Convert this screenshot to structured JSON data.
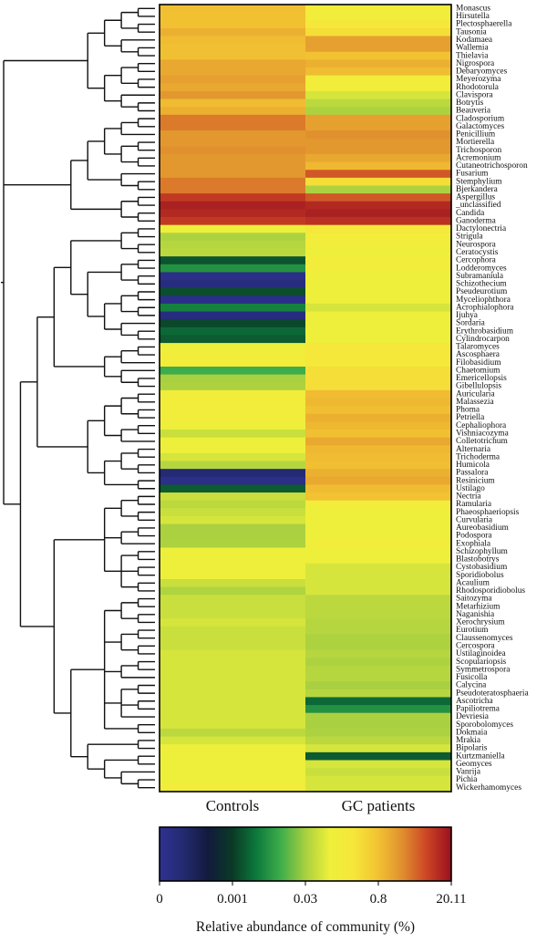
{
  "chart_data": {
    "type": "heatmap",
    "columns": [
      "Controls",
      "GC patients"
    ],
    "rows": [
      "Monascus",
      "Hirsutella",
      "Plectosphaerella",
      "Tausonia",
      "Kodamaea",
      "Wallemia",
      "Thielavia",
      "Nigrospora",
      "Debaryomyces",
      "Meyerozyma",
      "Rhodotorula",
      "Clavispora",
      "Botrytis",
      "Beauveria",
      "Cladosporium",
      "Galactomyces",
      "Penicillium",
      "Mortierella",
      "Trichosporon",
      "Acremonium",
      "Cutaneotrichosporon",
      "Fusarium",
      "Stemphylium",
      "Bjerkandera",
      "Aspergillus",
      "_unclassified",
      "Candida",
      "Ganoderma",
      "Dactylonectria",
      "Strigula",
      "Neurospora",
      "Ceratocystis",
      "Cercophora",
      "Lodderomyces",
      "Subramaniula",
      "Schizothecium",
      "Pseudeurotium",
      "Myceliophthora",
      "Acrophialophora",
      "Ijuhya",
      "Sordaria",
      "Erythrobasidium",
      "Cylindrocarpon",
      "Talaromyces",
      "Ascosphaera",
      "Filobasidium",
      "Chaetomium",
      "Emericellopsis",
      "Gibellulopsis",
      "Auricularia",
      "Malassezia",
      "Phoma",
      "Petriella",
      "Cephaliophora",
      "Vishniacozyma",
      "Colletotrichum",
      "Alternaria",
      "Trichoderma",
      "Humicola",
      "Passalora",
      "Resinicium",
      "Ustilago",
      "Nectria",
      "Ramularia",
      "Phaeosphaeriopsis",
      "Curvularia",
      "Aureobasidium",
      "Podospora",
      "Exophiala",
      "Schizophyllum",
      "Blastobotrys",
      "Cystobasidium",
      "Sporidiobolus",
      "Acaulium",
      "Rhodosporidiobolus",
      "Saitozyma",
      "Metarhizium",
      "Naganishia",
      "Xerochrysium",
      "Eurotium",
      "Claussenomyces",
      "Cercospora",
      "Ustilaginoidea",
      "Scopulariopsis",
      "Symmetrospora",
      "Fusicolla",
      "Calycina",
      "Pseudoteratosphaeria",
      "Ascotricha",
      "Papiliotrema",
      "Devriesia",
      "Sporobolomyces",
      "Dokmaia",
      "Mrakia",
      "Bipolaris",
      "Kurtzmaniella",
      "Geomyces",
      "Vanrija",
      "Pichia",
      "Wickerhamomyces"
    ],
    "values": [
      [
        1,
        0.4
      ],
      [
        0.9,
        0.4
      ],
      [
        0.9,
        0.5
      ],
      [
        3,
        0.6
      ],
      [
        1.5,
        5
      ],
      [
        1,
        5
      ],
      [
        1,
        0.8
      ],
      [
        4,
        3
      ],
      [
        4,
        1.5
      ],
      [
        5,
        0.4
      ],
      [
        4,
        0.4
      ],
      [
        6,
        0.2
      ],
      [
        1.5,
        0.1
      ],
      [
        3,
        0.05
      ],
      [
        9,
        5
      ],
      [
        9,
        5
      ],
      [
        6,
        7
      ],
      [
        6,
        6
      ],
      [
        7,
        6
      ],
      [
        6,
        4
      ],
      [
        6,
        2
      ],
      [
        6,
        12
      ],
      [
        9,
        0.6
      ],
      [
        9,
        0.05
      ],
      [
        15,
        12
      ],
      [
        18,
        17
      ],
      [
        17,
        18
      ],
      [
        15,
        16
      ],
      [
        0.3,
        0.5
      ],
      [
        0.05,
        0.4
      ],
      [
        0.08,
        0.4
      ],
      [
        0.1,
        0.3
      ],
      [
        0.005,
        0.4
      ],
      [
        0.015,
        0.4
      ],
      [
        0.0001,
        0.3
      ],
      [
        0.0002,
        0.3
      ],
      [
        0.004,
        0.3
      ],
      [
        0.0001,
        0.3
      ],
      [
        0.012,
        0.2
      ],
      [
        0.0002,
        0.3
      ],
      [
        0.003,
        0.3
      ],
      [
        0.008,
        0.3
      ],
      [
        0.006,
        0.3
      ],
      [
        0.3,
        0.5
      ],
      [
        0.4,
        0.5
      ],
      [
        0.4,
        0.5
      ],
      [
        0.02,
        0.6
      ],
      [
        0.03,
        0.6
      ],
      [
        0.05,
        0.6
      ],
      [
        0.4,
        1.5
      ],
      [
        0.4,
        2
      ],
      [
        0.4,
        1
      ],
      [
        0.4,
        3
      ],
      [
        0.3,
        2
      ],
      [
        0.15,
        1
      ],
      [
        0.3,
        4
      ],
      [
        0.3,
        2
      ],
      [
        0.2,
        1.5
      ],
      [
        0.08,
        1
      ],
      [
        0.0003,
        3
      ],
      [
        0.0001,
        4
      ],
      [
        0.006,
        1.5
      ],
      [
        0.15,
        0.8
      ],
      [
        0.1,
        0.4
      ],
      [
        0.15,
        0.3
      ],
      [
        0.2,
        0.3
      ],
      [
        0.04,
        0.3
      ],
      [
        0.04,
        0.3
      ],
      [
        0.05,
        0.4
      ],
      [
        0.3,
        0.3
      ],
      [
        0.3,
        0.3
      ],
      [
        0.3,
        0.2
      ],
      [
        0.3,
        0.2
      ],
      [
        0.15,
        0.2
      ],
      [
        0.06,
        0.2
      ],
      [
        0.15,
        0.1
      ],
      [
        0.15,
        0.1
      ],
      [
        0.15,
        0.1
      ],
      [
        0.2,
        0.08
      ],
      [
        0.15,
        0.08
      ],
      [
        0.15,
        0.05
      ],
      [
        0.15,
        0.05
      ],
      [
        0.2,
        0.08
      ],
      [
        0.2,
        0.05
      ],
      [
        0.2,
        0.08
      ],
      [
        0.2,
        0.08
      ],
      [
        0.2,
        0.03
      ],
      [
        0.2,
        0.08
      ],
      [
        0.2,
        0.008
      ],
      [
        0.2,
        0.015
      ],
      [
        0.2,
        0.04
      ],
      [
        0.2,
        0.03
      ],
      [
        0.1,
        0.05
      ],
      [
        0.2,
        0.1
      ],
      [
        0.3,
        0.2
      ],
      [
        0.3,
        0.006
      ],
      [
        0.3,
        0.2
      ],
      [
        0.3,
        0.15
      ],
      [
        0.3,
        0.2
      ],
      [
        0.4,
        0.2
      ]
    ],
    "colormap": [
      "#2e3192",
      "#232a70",
      "#121a3c",
      "#0a3a26",
      "#0d7a3c",
      "#3fae4a",
      "#a8d040",
      "#eef03a",
      "#f6e63a",
      "#f2c232",
      "#e08e2e",
      "#cc4424",
      "#9a1020"
    ],
    "colorbar": {
      "ticks": [
        0,
        0.001,
        0.03,
        0.8,
        20.11
      ],
      "label": "Relative abundance of community (%)"
    }
  }
}
